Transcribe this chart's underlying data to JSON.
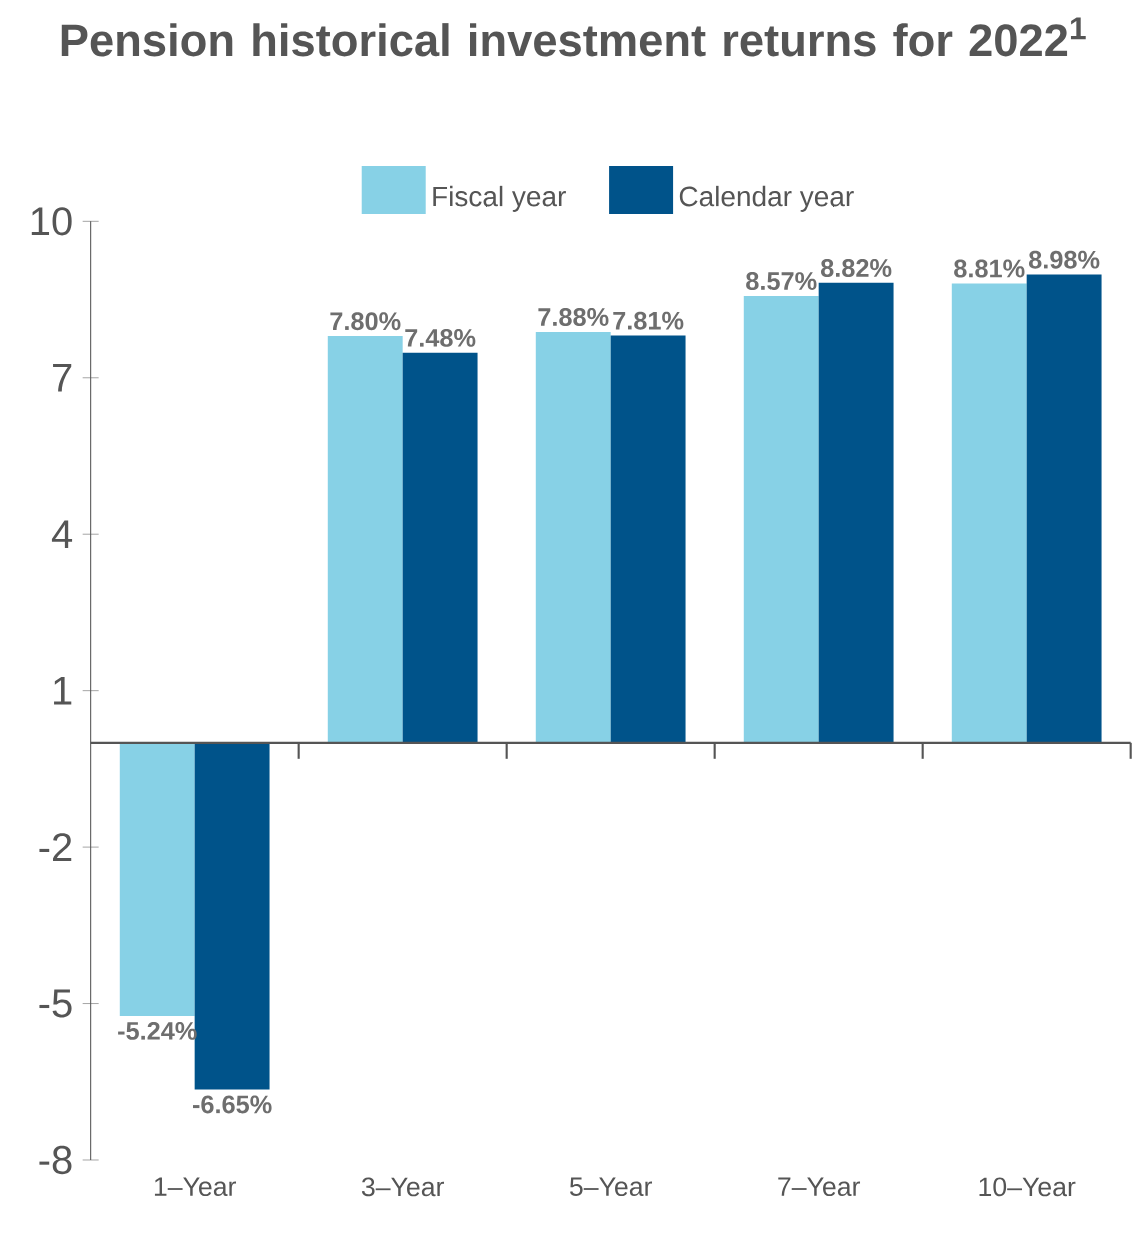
{
  "chart_data": {
    "type": "bar",
    "title": "Pension historical investment returns for 2022$^{1}$",
    "categories": [
      "1–Year",
      "3–Year",
      "5–Year",
      "7–Year",
      "10–Year"
    ],
    "series": [
      {
        "name": "Fiscal year",
        "color": "#87d1e6",
        "values": [
          -5.24,
          7.8,
          7.88,
          8.57,
          8.81
        ],
        "value_labels": [
          "-5.24%",
          "7.80%",
          "7.88%",
          "8.57%",
          "8.81%"
        ]
      },
      {
        "name": "Calendar year",
        "color": "#00538a",
        "values": [
          -6.65,
          7.48,
          7.81,
          8.82,
          8.98
        ],
        "value_labels": [
          "-6.65%",
          "7.48%",
          "7.81%",
          "8.82%",
          "8.98%"
        ]
      }
    ],
    "ylim": [
      -8,
      10
    ],
    "yticks": [
      -8,
      -5,
      -2,
      1,
      4,
      7,
      10
    ],
    "legend": "top",
    "grid": false
  }
}
